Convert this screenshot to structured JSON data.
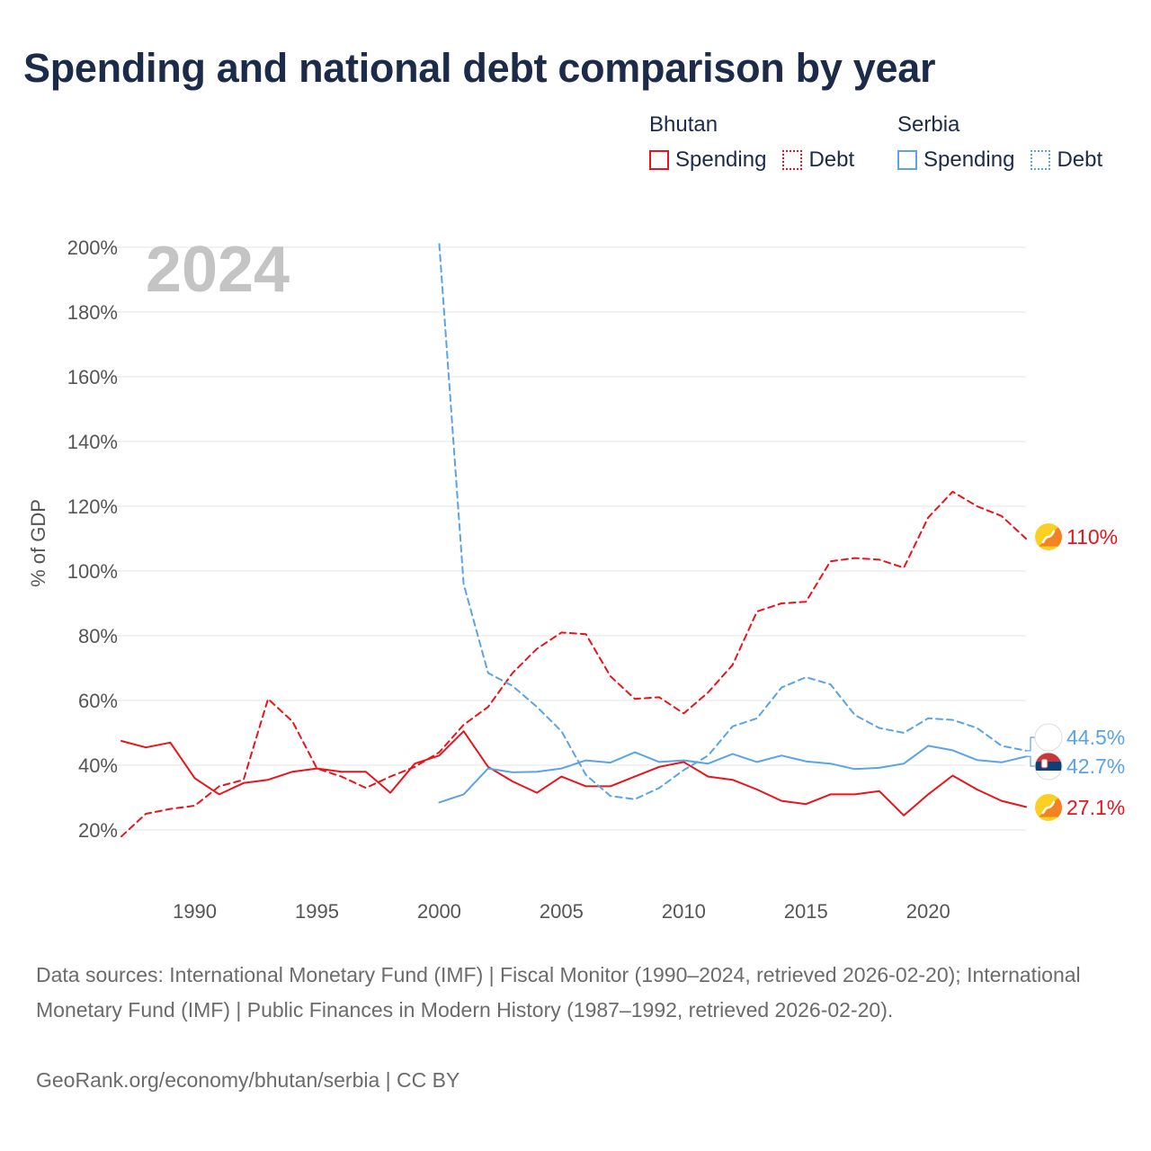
{
  "title": "Spending and national debt comparison by year",
  "legend": {
    "groups": [
      {
        "country": "Bhutan",
        "color": "#e8141b",
        "spending_label": "Spending",
        "debt_label": "Debt"
      },
      {
        "country": "Serbia",
        "color": "#5aa3e6",
        "spending_label": "Spending",
        "debt_label": "Debt"
      }
    ]
  },
  "chart_data": {
    "type": "line",
    "title": "Spending and national debt comparison by year",
    "ylabel": "% of GDP",
    "xlabel": "",
    "year_label": "2024",
    "xlim": [
      1987,
      2024
    ],
    "ylim": [
      10,
      200
    ],
    "x_ticks": [
      1990,
      1995,
      2000,
      2005,
      2010,
      2015,
      2020
    ],
    "y_ticks": [
      20,
      40,
      60,
      80,
      100,
      120,
      140,
      160,
      180,
      200
    ],
    "y_tick_suffix": "%",
    "grid": true,
    "series": [
      {
        "name": "Bhutan Spending",
        "country": "Bhutan",
        "metric": "Spending",
        "color": "#e8141b",
        "style": "solid",
        "x": [
          1987,
          1988,
          1989,
          1990,
          1991,
          1992,
          1993,
          1994,
          1995,
          1996,
          1997,
          1998,
          1999,
          2000,
          2001,
          2002,
          2003,
          2004,
          2005,
          2006,
          2007,
          2008,
          2009,
          2010,
          2011,
          2012,
          2013,
          2014,
          2015,
          2016,
          2017,
          2018,
          2019,
          2020,
          2021,
          2022,
          2023,
          2024
        ],
        "values": [
          47.5,
          45.5,
          47,
          36,
          31,
          34.5,
          35.5,
          38,
          39,
          38,
          38,
          31.5,
          40.5,
          43,
          50.5,
          39.5,
          35,
          31.5,
          36.5,
          33.5,
          33.5,
          36.5,
          39.5,
          41,
          36.5,
          35.5,
          32.5,
          29,
          28,
          31,
          31,
          32,
          24.5,
          31,
          36.8,
          32.5,
          29,
          27.1
        ],
        "end_label": "27.1%"
      },
      {
        "name": "Bhutan Debt",
        "country": "Bhutan",
        "metric": "Debt",
        "color": "#e8141b",
        "style": "dashed",
        "x": [
          1987,
          1988,
          1989,
          1990,
          1991,
          1992,
          1993,
          1994,
          1995,
          1996,
          1997,
          1998,
          1999,
          2000,
          2001,
          2002,
          2003,
          2004,
          2005,
          2006,
          2007,
          2008,
          2009,
          2010,
          2011,
          2012,
          2013,
          2014,
          2015,
          2016,
          2017,
          2018,
          2019,
          2020,
          2021,
          2022,
          2023,
          2024
        ],
        "values": [
          18,
          25,
          26.5,
          27.5,
          33.5,
          35.5,
          60.5,
          53.5,
          39,
          36.5,
          33,
          36.5,
          39.5,
          44,
          52.5,
          58,
          68.5,
          76,
          81,
          80.5,
          67.5,
          60.5,
          61,
          56,
          62.5,
          71,
          87.5,
          90,
          90.5,
          103,
          104,
          103.5,
          101,
          116.5,
          124.5,
          120,
          117,
          110
        ],
        "end_label": "110%"
      },
      {
        "name": "Serbia Spending",
        "country": "Serbia",
        "metric": "Spending",
        "color": "#5aa3e6",
        "style": "solid",
        "x": [
          2000,
          2001,
          2002,
          2003,
          2004,
          2005,
          2006,
          2007,
          2008,
          2009,
          2010,
          2011,
          2012,
          2013,
          2014,
          2015,
          2016,
          2017,
          2018,
          2019,
          2020,
          2021,
          2022,
          2023,
          2024
        ],
        "values": [
          28.5,
          31,
          39,
          37.8,
          38,
          39,
          41.5,
          40.8,
          44,
          41,
          41.5,
          40.5,
          43.5,
          41,
          43,
          41.2,
          40.5,
          38.8,
          39.2,
          40.5,
          46,
          44.6,
          41.6,
          40.9,
          42.7
        ],
        "end_label": "42.7%"
      },
      {
        "name": "Serbia Debt",
        "country": "Serbia",
        "metric": "Debt",
        "color": "#5aa3e6",
        "style": "dashed",
        "x": [
          2000,
          2001,
          2002,
          2003,
          2004,
          2005,
          2006,
          2007,
          2008,
          2009,
          2010,
          2011,
          2012,
          2013,
          2014,
          2015,
          2016,
          2017,
          2018,
          2019,
          2020,
          2021,
          2022,
          2023,
          2024
        ],
        "values": [
          201,
          96,
          68.5,
          64.5,
          58,
          50.5,
          37,
          30.5,
          29.5,
          33,
          38.5,
          43,
          52,
          54.5,
          64,
          67.2,
          65,
          55.5,
          51.5,
          50,
          54.5,
          54,
          51.5,
          46,
          44.5
        ],
        "end_label": "44.5%"
      }
    ]
  },
  "footer": {
    "sources": "Data sources: International Monetary Fund (IMF) | Fiscal Monitor (1990–2024, retrieved 2026-02-20); International Monetary Fund (IMF) | Public Finances in Modern History (1987–1992, retrieved 2026-02-20).",
    "credit": "GeoRank.org/economy/bhutan/serbia | CC BY"
  }
}
